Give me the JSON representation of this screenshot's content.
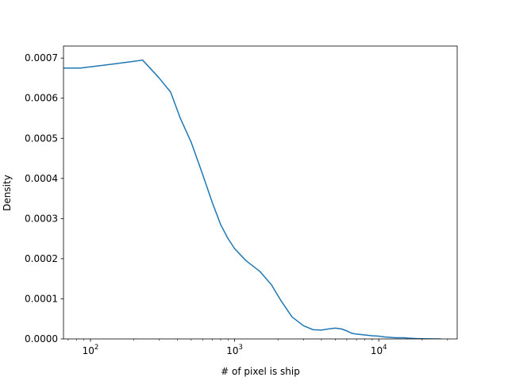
{
  "chart_data": {
    "type": "line",
    "title": "",
    "xlabel": "# of pixel is ship",
    "ylabel": "Density",
    "xscale": "log",
    "xlim": [
      65,
      35000
    ],
    "ylim": [
      0,
      0.00073
    ],
    "grid": false,
    "legend": "none",
    "series": [
      {
        "color": "#1f77b4",
        "x": [
          65,
          85,
          110,
          150,
          200,
          230,
          300,
          360,
          420,
          500,
          600,
          700,
          800,
          900,
          1000,
          1200,
          1500,
          1800,
          2100,
          2500,
          3000,
          3500,
          4000,
          4500,
          5000,
          5500,
          6000,
          6500,
          7000,
          8000,
          9000,
          10000,
          11000,
          12000,
          13000,
          14000,
          15000,
          16000,
          18000,
          20000,
          22000,
          25000,
          27000
        ],
        "y": [
          0.000675,
          0.000675,
          0.00068,
          0.000686,
          0.000692,
          0.000695,
          0.00065,
          0.000615,
          0.00055,
          0.00049,
          0.00041,
          0.00034,
          0.000285,
          0.00025,
          0.000225,
          0.000195,
          0.000168,
          0.000135,
          9.5e-05,
          5.5e-05,
          3.3e-05,
          2.3e-05,
          2.2e-05,
          2.5e-05,
          2.7e-05,
          2.5e-05,
          2e-05,
          1.4e-05,
          1.2e-05,
          1e-05,
          8e-06,
          7e-06,
          5e-06,
          4e-06,
          3e-06,
          3e-06,
          3e-06,
          2e-06,
          1e-06,
          5e-07,
          2e-07,
          1e-07,
          0
        ]
      }
    ],
    "x_ticks": [
      {
        "value": 100,
        "base": "10",
        "exp": "2"
      },
      {
        "value": 1000,
        "base": "10",
        "exp": "3"
      },
      {
        "value": 10000,
        "base": "10",
        "exp": "4"
      }
    ],
    "y_ticks": [
      {
        "value": 0,
        "label": "0.0000"
      },
      {
        "value": 0.0001,
        "label": "0.0001"
      },
      {
        "value": 0.0002,
        "label": "0.0002"
      },
      {
        "value": 0.0003,
        "label": "0.0003"
      },
      {
        "value": 0.0004,
        "label": "0.0004"
      },
      {
        "value": 0.0005,
        "label": "0.0005"
      },
      {
        "value": 0.0006,
        "label": "0.0006"
      },
      {
        "value": 0.0007,
        "label": "0.0007"
      }
    ]
  }
}
